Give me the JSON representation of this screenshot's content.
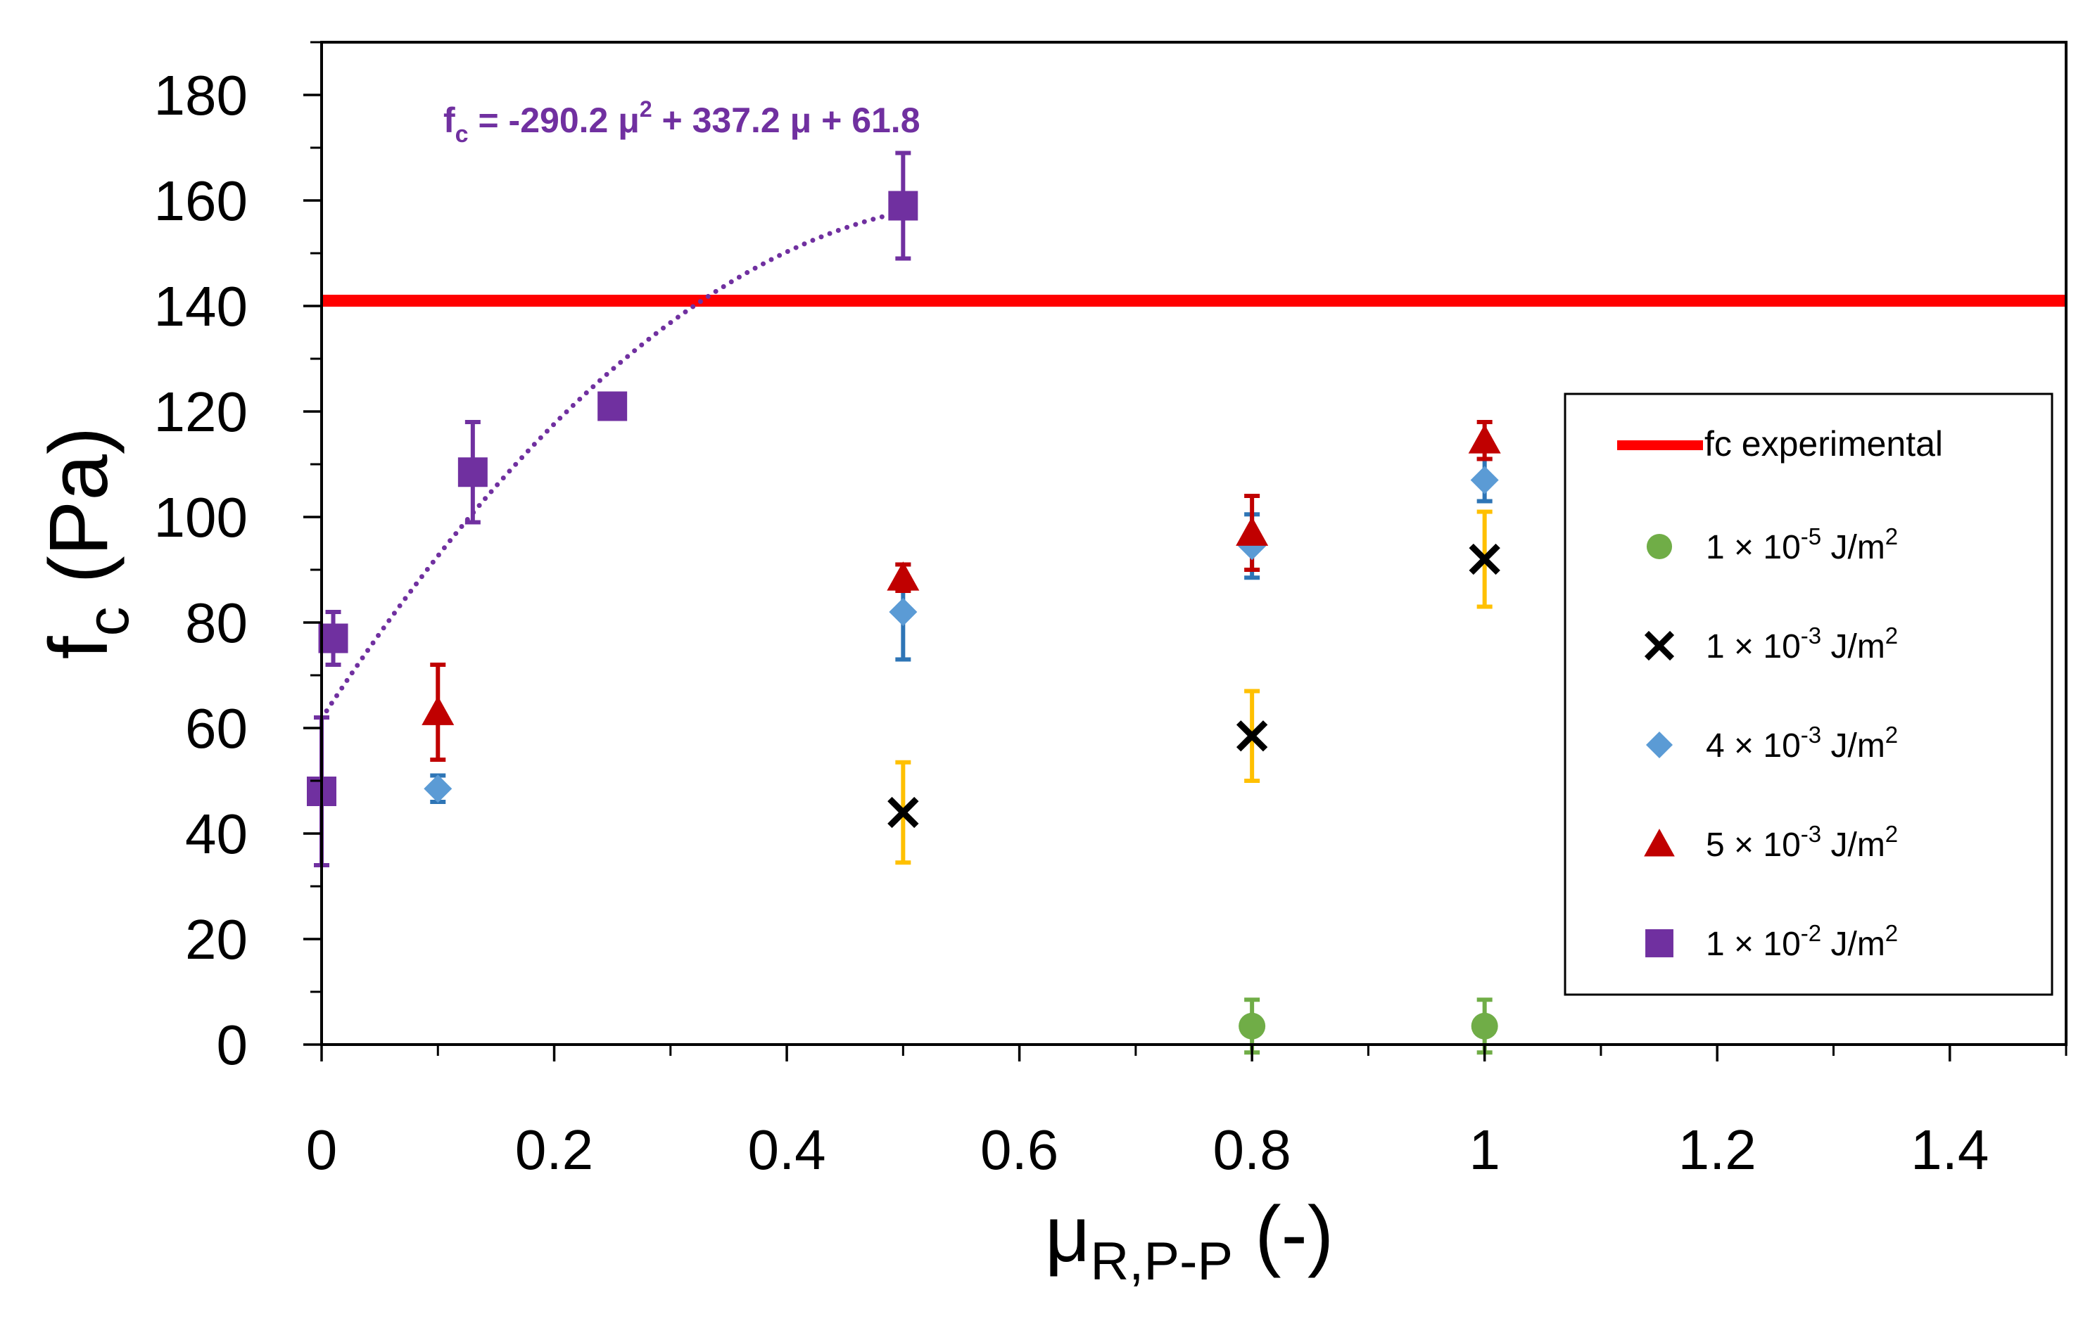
{
  "chart_data": {
    "type": "scatter",
    "title": "",
    "xlabel": {
      "main": "μ",
      "sub": "R,P-P",
      "suffix": "(-)"
    },
    "ylabel": {
      "main": "f",
      "sub": "c",
      "suffix": "(Pa)"
    },
    "xlim": [
      0,
      1.5
    ],
    "ylim": [
      0,
      190
    ],
    "xticks": [
      0,
      0.2,
      0.4,
      0.6,
      0.8,
      1,
      1.2,
      1.4
    ],
    "xtick_labels": [
      "0",
      "0.2",
      "0.4",
      "0.6",
      "0.8",
      "1",
      "1.2",
      "1.4"
    ],
    "yticks": [
      0,
      20,
      40,
      60,
      80,
      100,
      120,
      140,
      160,
      180
    ],
    "ytick_labels": [
      "0",
      "20",
      "40",
      "60",
      "80",
      "100",
      "120",
      "140",
      "160",
      "180"
    ],
    "grid": false,
    "legend_position": "right",
    "reference_line": {
      "name": "fc experimental",
      "y": 141,
      "color": "#ff0000"
    },
    "fit": {
      "series": "1 × 10-2 J/m2",
      "coefficients": [
        -290.2,
        337.2,
        61.8
      ],
      "x_range": [
        0,
        0.5
      ],
      "color": "#7030a0",
      "equation": {
        "lhs": "f",
        "lhs_sub": "c",
        "part1": " = -290.2 μ",
        "exp": "2",
        "part2": " + 337.2 μ + 61.8"
      }
    },
    "series": [
      {
        "name": "1 × 10-5 J/m2",
        "legend_parts": [
          "1 × 10",
          "-5",
          " J/m",
          "2"
        ],
        "marker": "circle",
        "color": "#70ad47",
        "error_color": "#70ad47",
        "points": [
          {
            "x": 0.8,
            "y": 3.5,
            "err": 5
          },
          {
            "x": 1.0,
            "y": 3.5,
            "err": 5
          }
        ]
      },
      {
        "name": "1 × 10-3 J/m2",
        "legend_parts": [
          "1 × 10",
          "-3",
          " J/m",
          "2"
        ],
        "marker": "x",
        "color": "#000000",
        "error_color": "#ffc000",
        "points": [
          {
            "x": 0.5,
            "y": 44,
            "err": 9.5
          },
          {
            "x": 0.8,
            "y": 58.5,
            "err": 8.5
          },
          {
            "x": 1.0,
            "y": 92,
            "err": 9
          }
        ]
      },
      {
        "name": "4 × 10-3 J/m2",
        "legend_parts": [
          "4 × 10",
          "-3",
          " J/m",
          "2"
        ],
        "marker": "diamond",
        "color": "#5b9bd5",
        "error_color": "#2e75b6",
        "points": [
          {
            "x": 0.1,
            "y": 48.5,
            "err": 2.5
          },
          {
            "x": 0.5,
            "y": 82,
            "err": 9
          },
          {
            "x": 0.8,
            "y": 94.5,
            "err": 6
          },
          {
            "x": 1.0,
            "y": 107,
            "err": 4
          }
        ]
      },
      {
        "name": "5 × 10-3 J/m2",
        "legend_parts": [
          "5 × 10",
          "-3",
          " J/m",
          "2"
        ],
        "marker": "triangle",
        "color": "#c00000",
        "error_color": "#c00000",
        "points": [
          {
            "x": 0.1,
            "y": 63,
            "err": 9
          },
          {
            "x": 0.5,
            "y": 88.5,
            "err": 2.5
          },
          {
            "x": 0.8,
            "y": 97,
            "err": 7
          },
          {
            "x": 1.0,
            "y": 114.5,
            "err": 3.5
          }
        ]
      },
      {
        "name": "1 × 10-2 J/m2",
        "legend_parts": [
          "1 × 10",
          "-2",
          " J/m",
          "2"
        ],
        "marker": "square",
        "color": "#7030a0",
        "error_color": "#7030a0",
        "points": [
          {
            "x": 0.0,
            "y": 48,
            "err": 14
          },
          {
            "x": 0.01,
            "y": 77,
            "err": 5
          },
          {
            "x": 0.13,
            "y": 108.5,
            "err": 9.5
          },
          {
            "x": 0.25,
            "y": 121,
            "err": 2
          },
          {
            "x": 0.5,
            "y": 159,
            "err": 10
          }
        ]
      }
    ]
  }
}
